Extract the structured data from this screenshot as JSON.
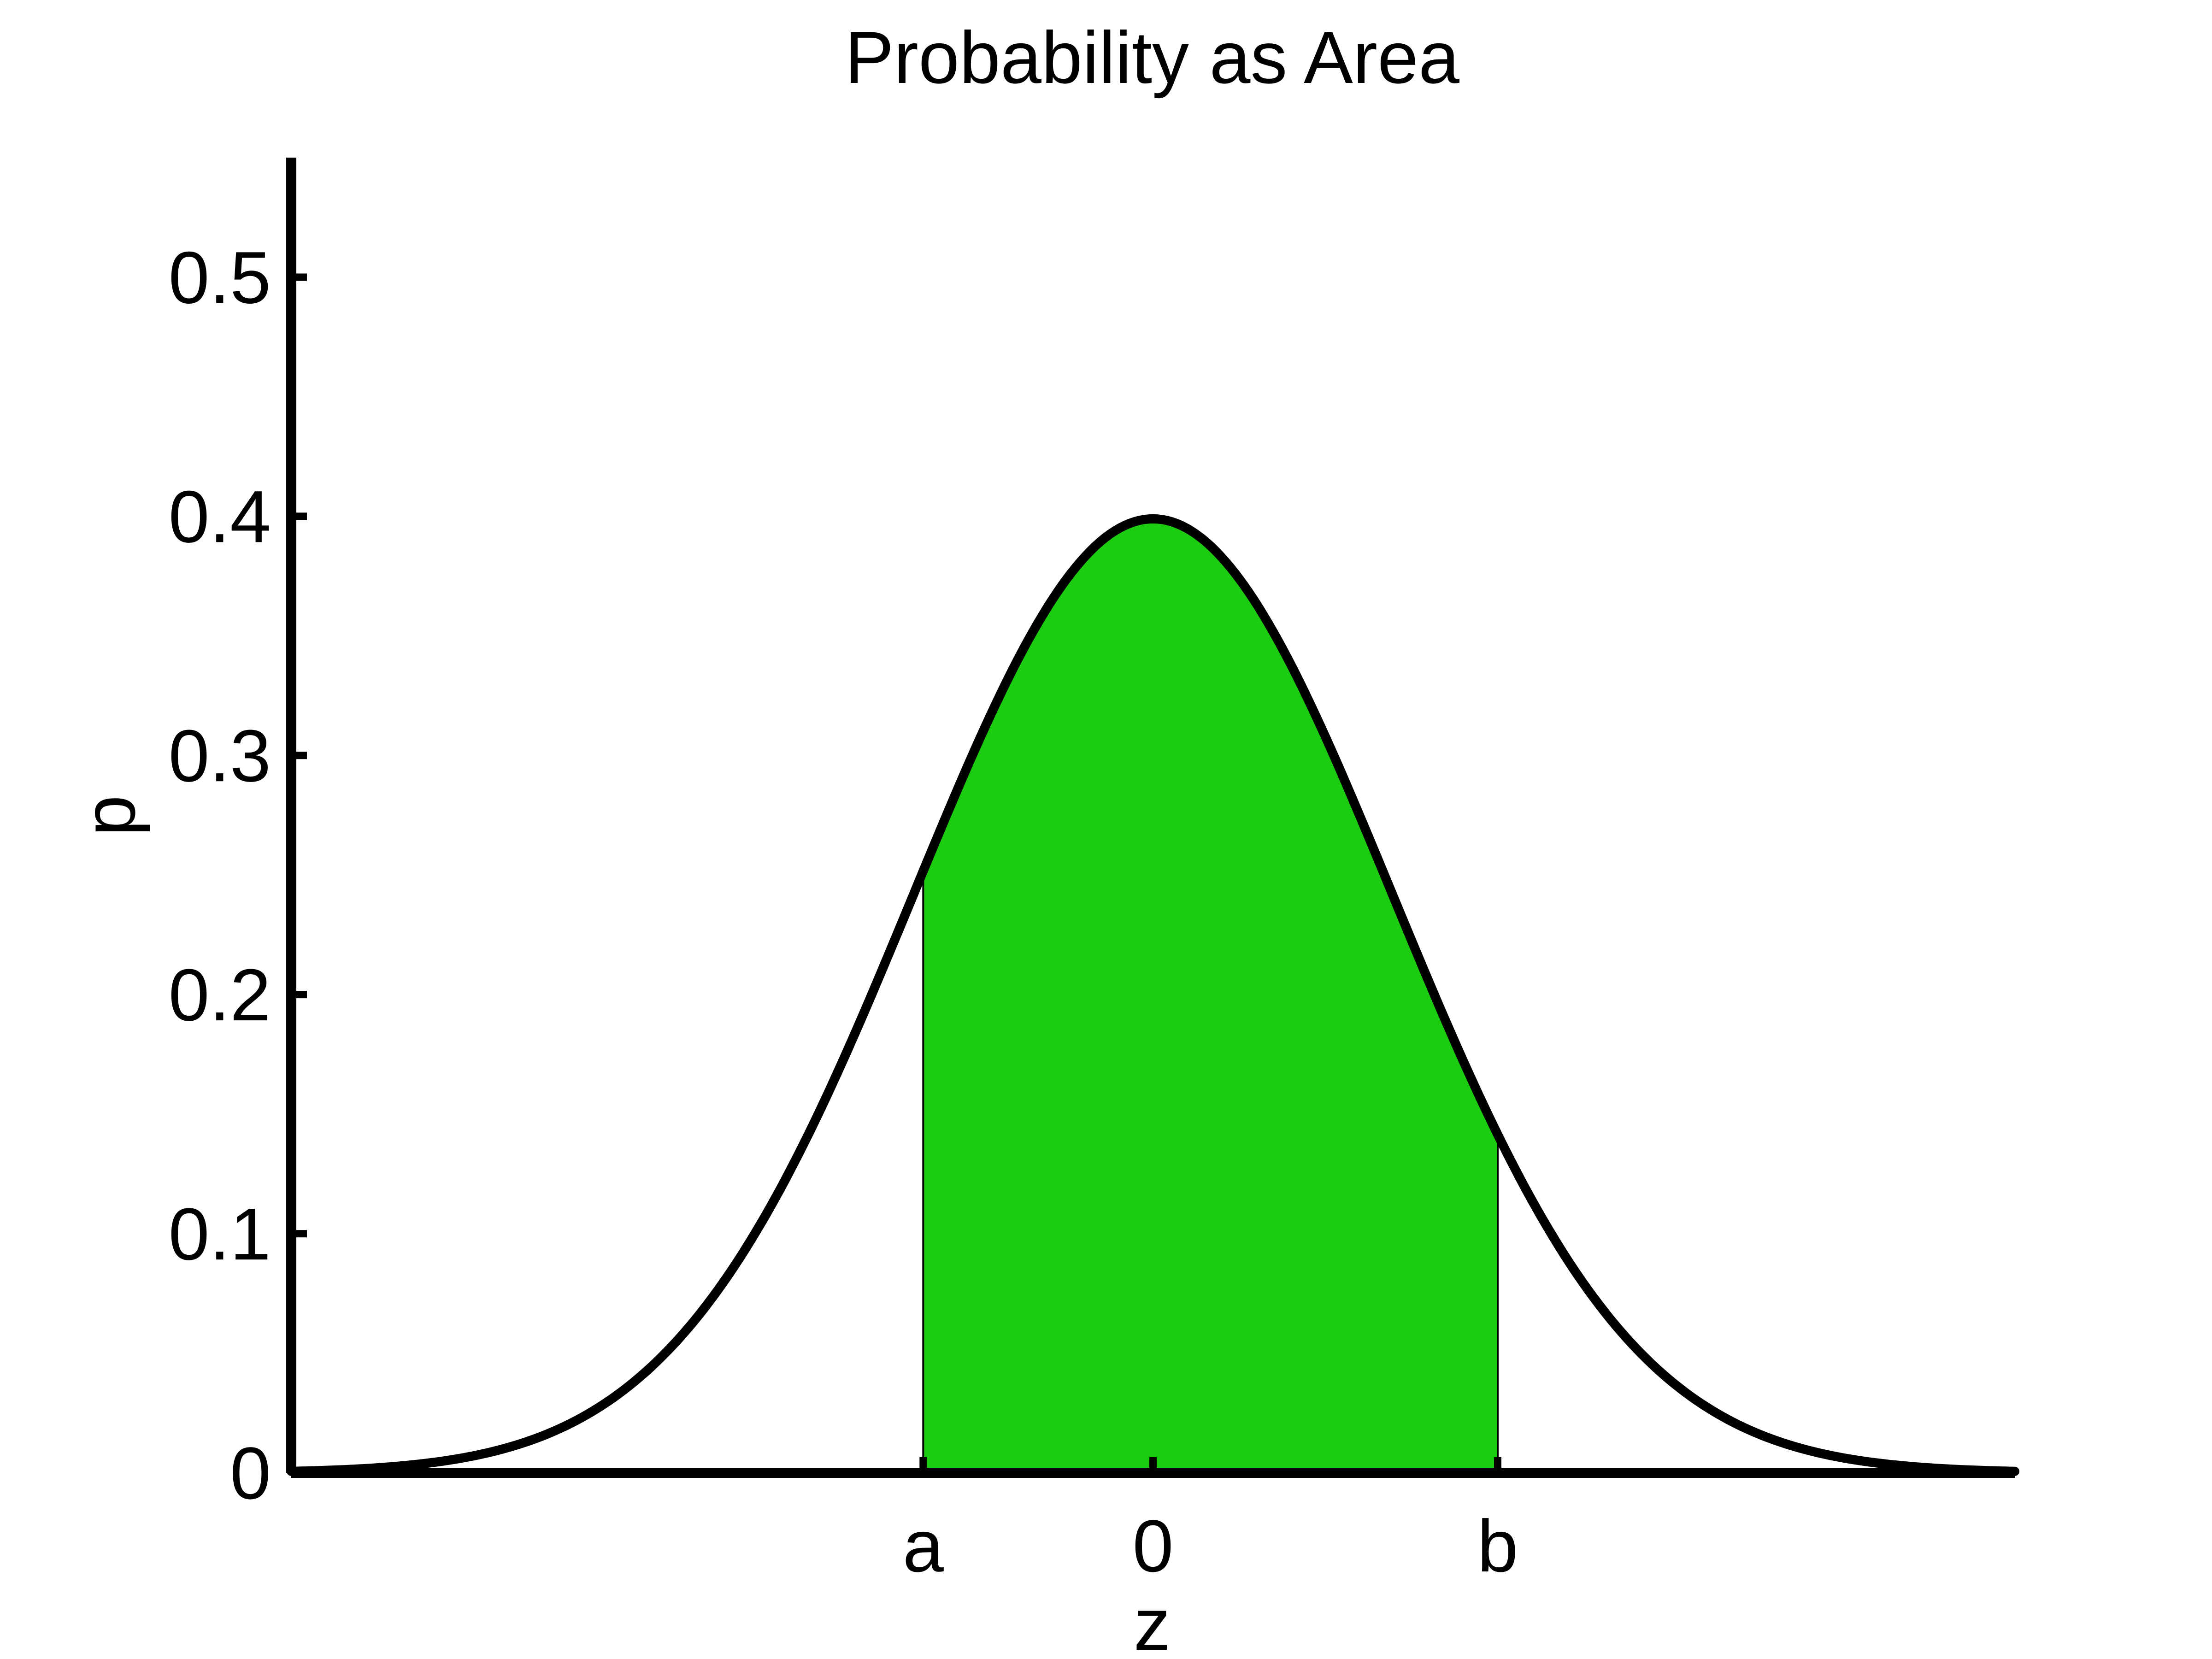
{
  "chart_data": {
    "type": "area",
    "title": "Probability as Area",
    "xlabel": "z",
    "ylabel": "p",
    "xlim": [
      -3.6,
      3.6
    ],
    "ylim": [
      0,
      0.55
    ],
    "grid": false,
    "legend": "none",
    "curve": "standard normal density",
    "shaded_region": {
      "from": -0.96,
      "to": 1.44
    },
    "x_ticks": [
      {
        "value": -0.96,
        "label": "a"
      },
      {
        "value": 0,
        "label": "0"
      },
      {
        "value": 1.44,
        "label": "b"
      }
    ],
    "y_ticks": [
      {
        "value": 0,
        "label": "0"
      },
      {
        "value": 0.1,
        "label": "0.1"
      },
      {
        "value": 0.2,
        "label": "0.2"
      },
      {
        "value": 0.3,
        "label": "0.3"
      },
      {
        "value": 0.4,
        "label": "0.4"
      },
      {
        "value": 0.5,
        "label": "0.5"
      }
    ],
    "series": [
      {
        "x": [
          -3.6,
          -3.2,
          -2.8,
          -2.4,
          -2.0,
          -1.6,
          -1.2,
          -0.96,
          -0.8,
          -0.4,
          0.0,
          0.4,
          0.8,
          1.2,
          1.44,
          1.6,
          2.0,
          2.4,
          2.8,
          3.2,
          3.6
        ],
        "y": [
          0.0006,
          0.0024,
          0.0079,
          0.0224,
          0.054,
          0.1109,
          0.1942,
          0.2516,
          0.2897,
          0.3683,
          0.3989,
          0.3683,
          0.2897,
          0.1942,
          0.1415,
          0.1109,
          0.054,
          0.0224,
          0.0079,
          0.0024,
          0.0006
        ]
      }
    ],
    "colors": {
      "fill": "#1ccc10",
      "curve": "#000000",
      "axes": "#000000"
    }
  }
}
